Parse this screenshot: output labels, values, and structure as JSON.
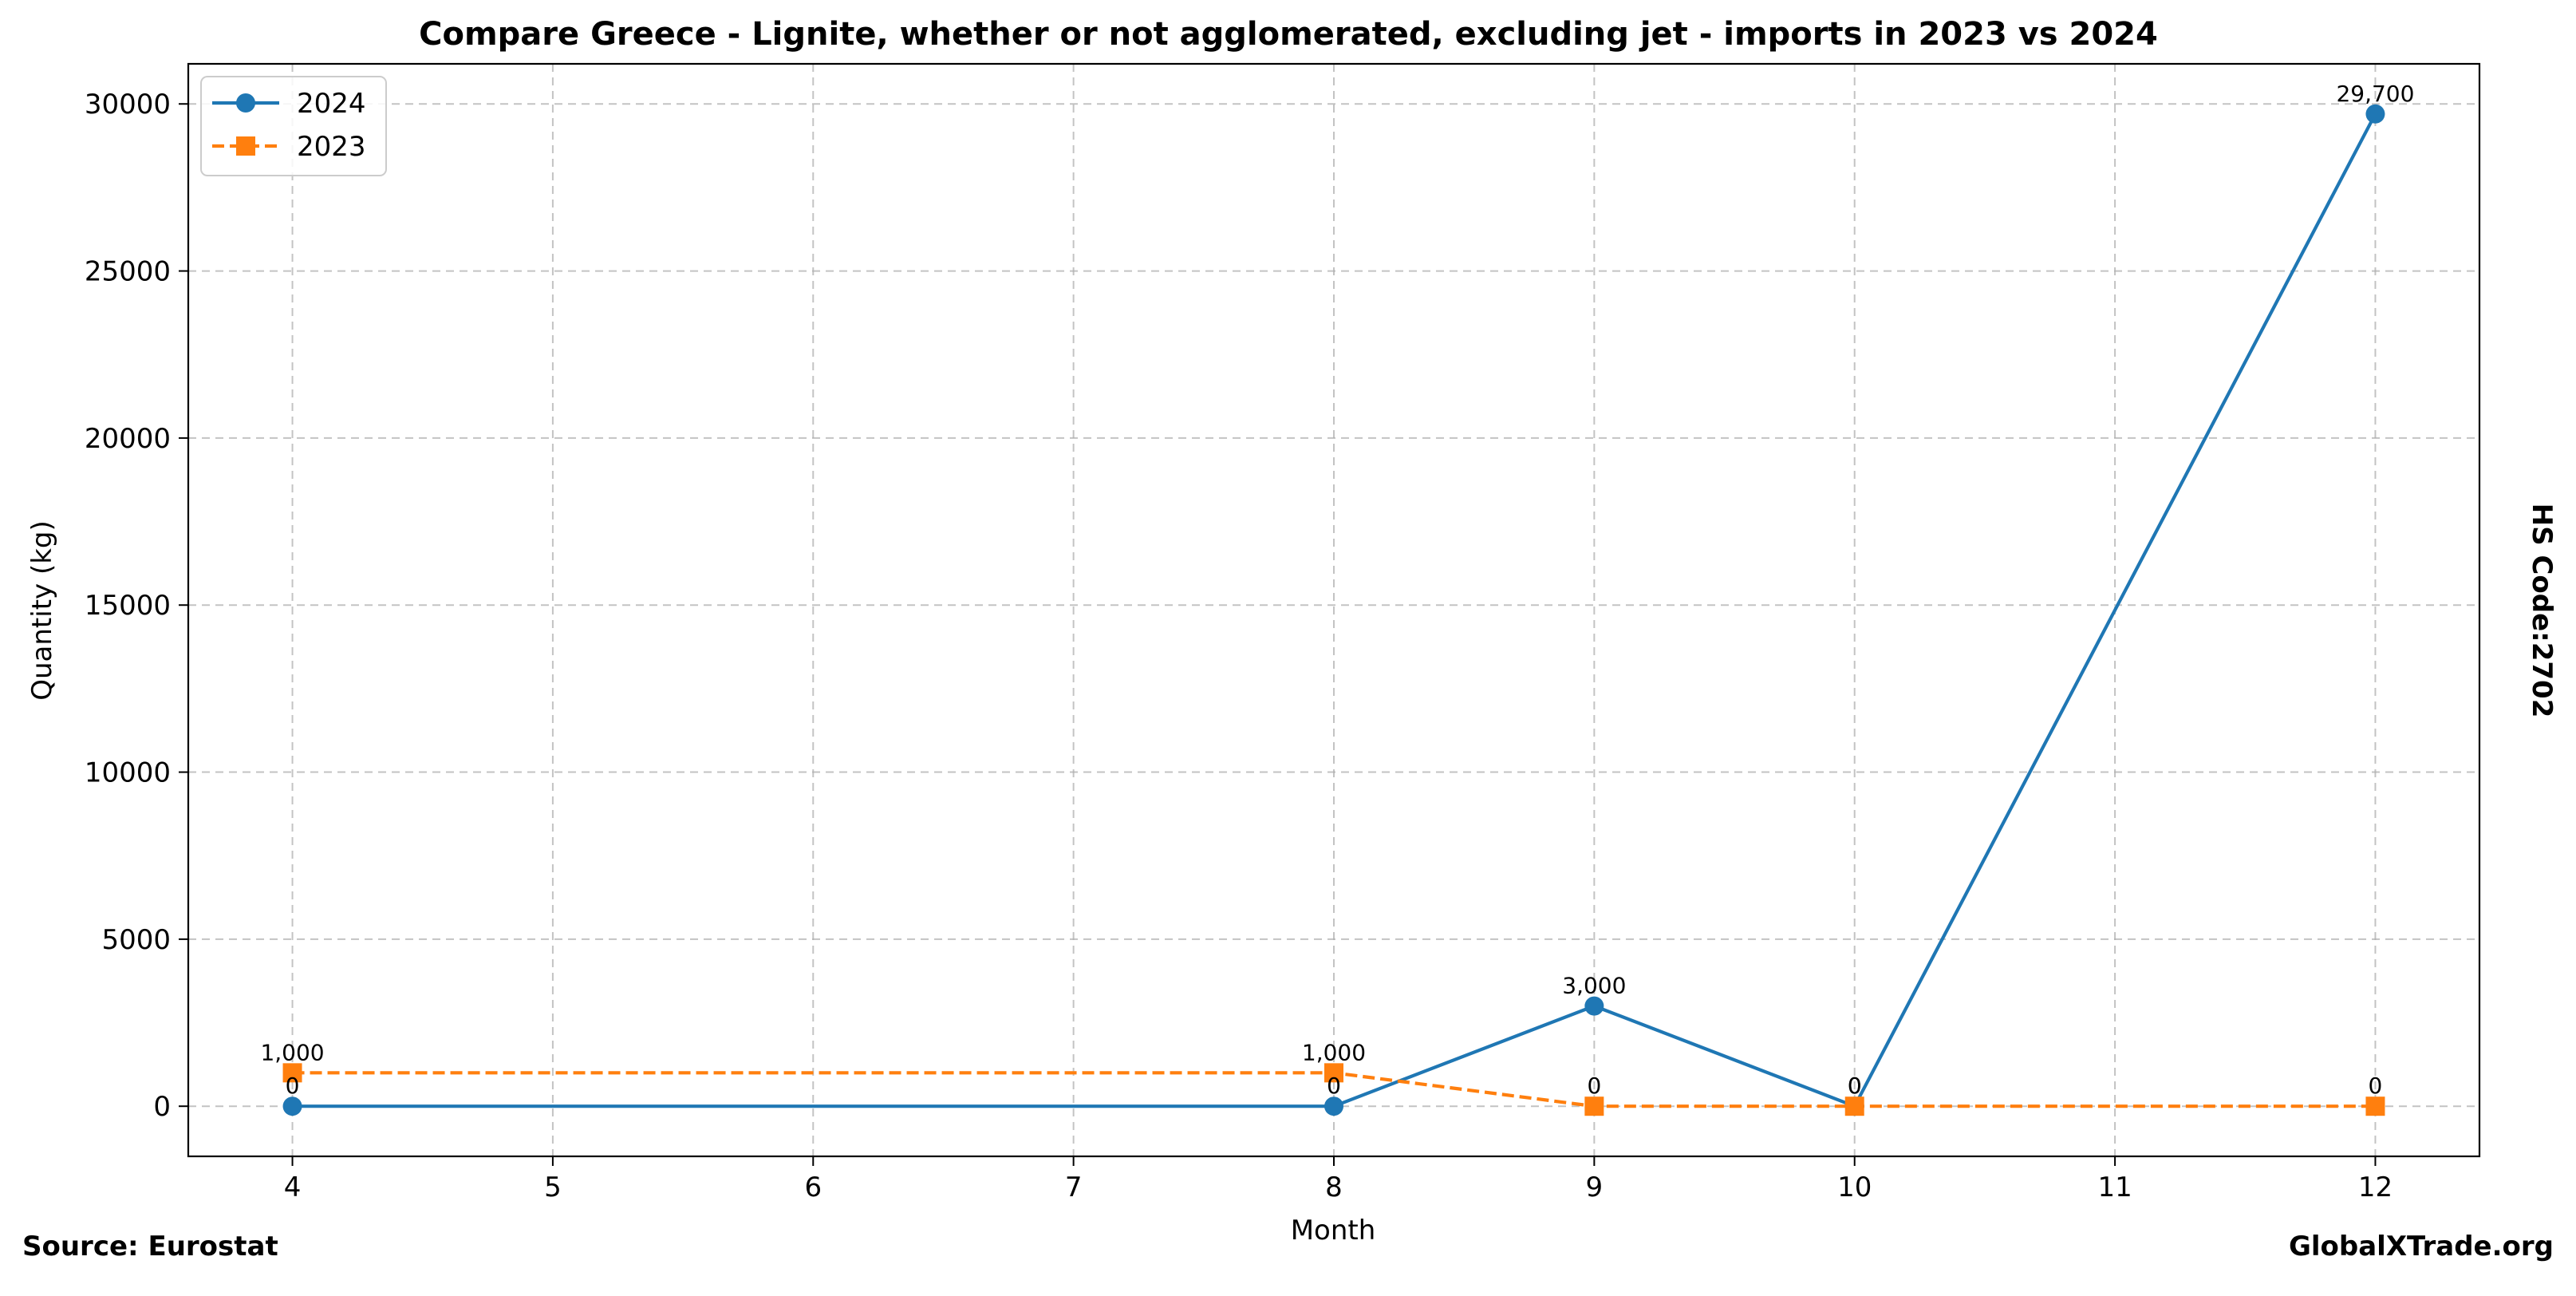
{
  "chart_data": {
    "type": "line",
    "title": "Compare Greece - Lignite, whether or not agglomerated, excluding jet - imports in 2023 vs 2024",
    "xlabel": "Month",
    "ylabel": "Quantity (kg)",
    "xlim": [
      3.6,
      12.4
    ],
    "ylim": [
      -1500,
      31200
    ],
    "x_ticks": [
      4,
      5,
      6,
      7,
      8,
      9,
      10,
      11,
      12
    ],
    "y_ticks": [
      0,
      5000,
      10000,
      15000,
      20000,
      25000,
      30000
    ],
    "grid": true,
    "legend_position": "top-left",
    "series": [
      {
        "name": "2024",
        "color": "#1f77b4",
        "marker": "circle",
        "line_style": "solid",
        "x": [
          4,
          8,
          9,
          10,
          12
        ],
        "values": [
          0,
          0,
          3000,
          0,
          29700
        ],
        "data_labels": [
          "0",
          "0",
          "3,000",
          "0",
          "29,700"
        ]
      },
      {
        "name": "2023",
        "color": "#ff7f0e",
        "marker": "square",
        "line_style": "dashed",
        "x": [
          4,
          8,
          9,
          10,
          12
        ],
        "values": [
          1000,
          1000,
          0,
          0,
          0
        ],
        "data_labels": [
          "1,000",
          "1,000",
          "0",
          "0",
          "0"
        ]
      }
    ]
  },
  "side_label": "HS Code:2702",
  "footer": {
    "source": "Source: Eurostat",
    "brand": "GlobalXTrade.org"
  }
}
